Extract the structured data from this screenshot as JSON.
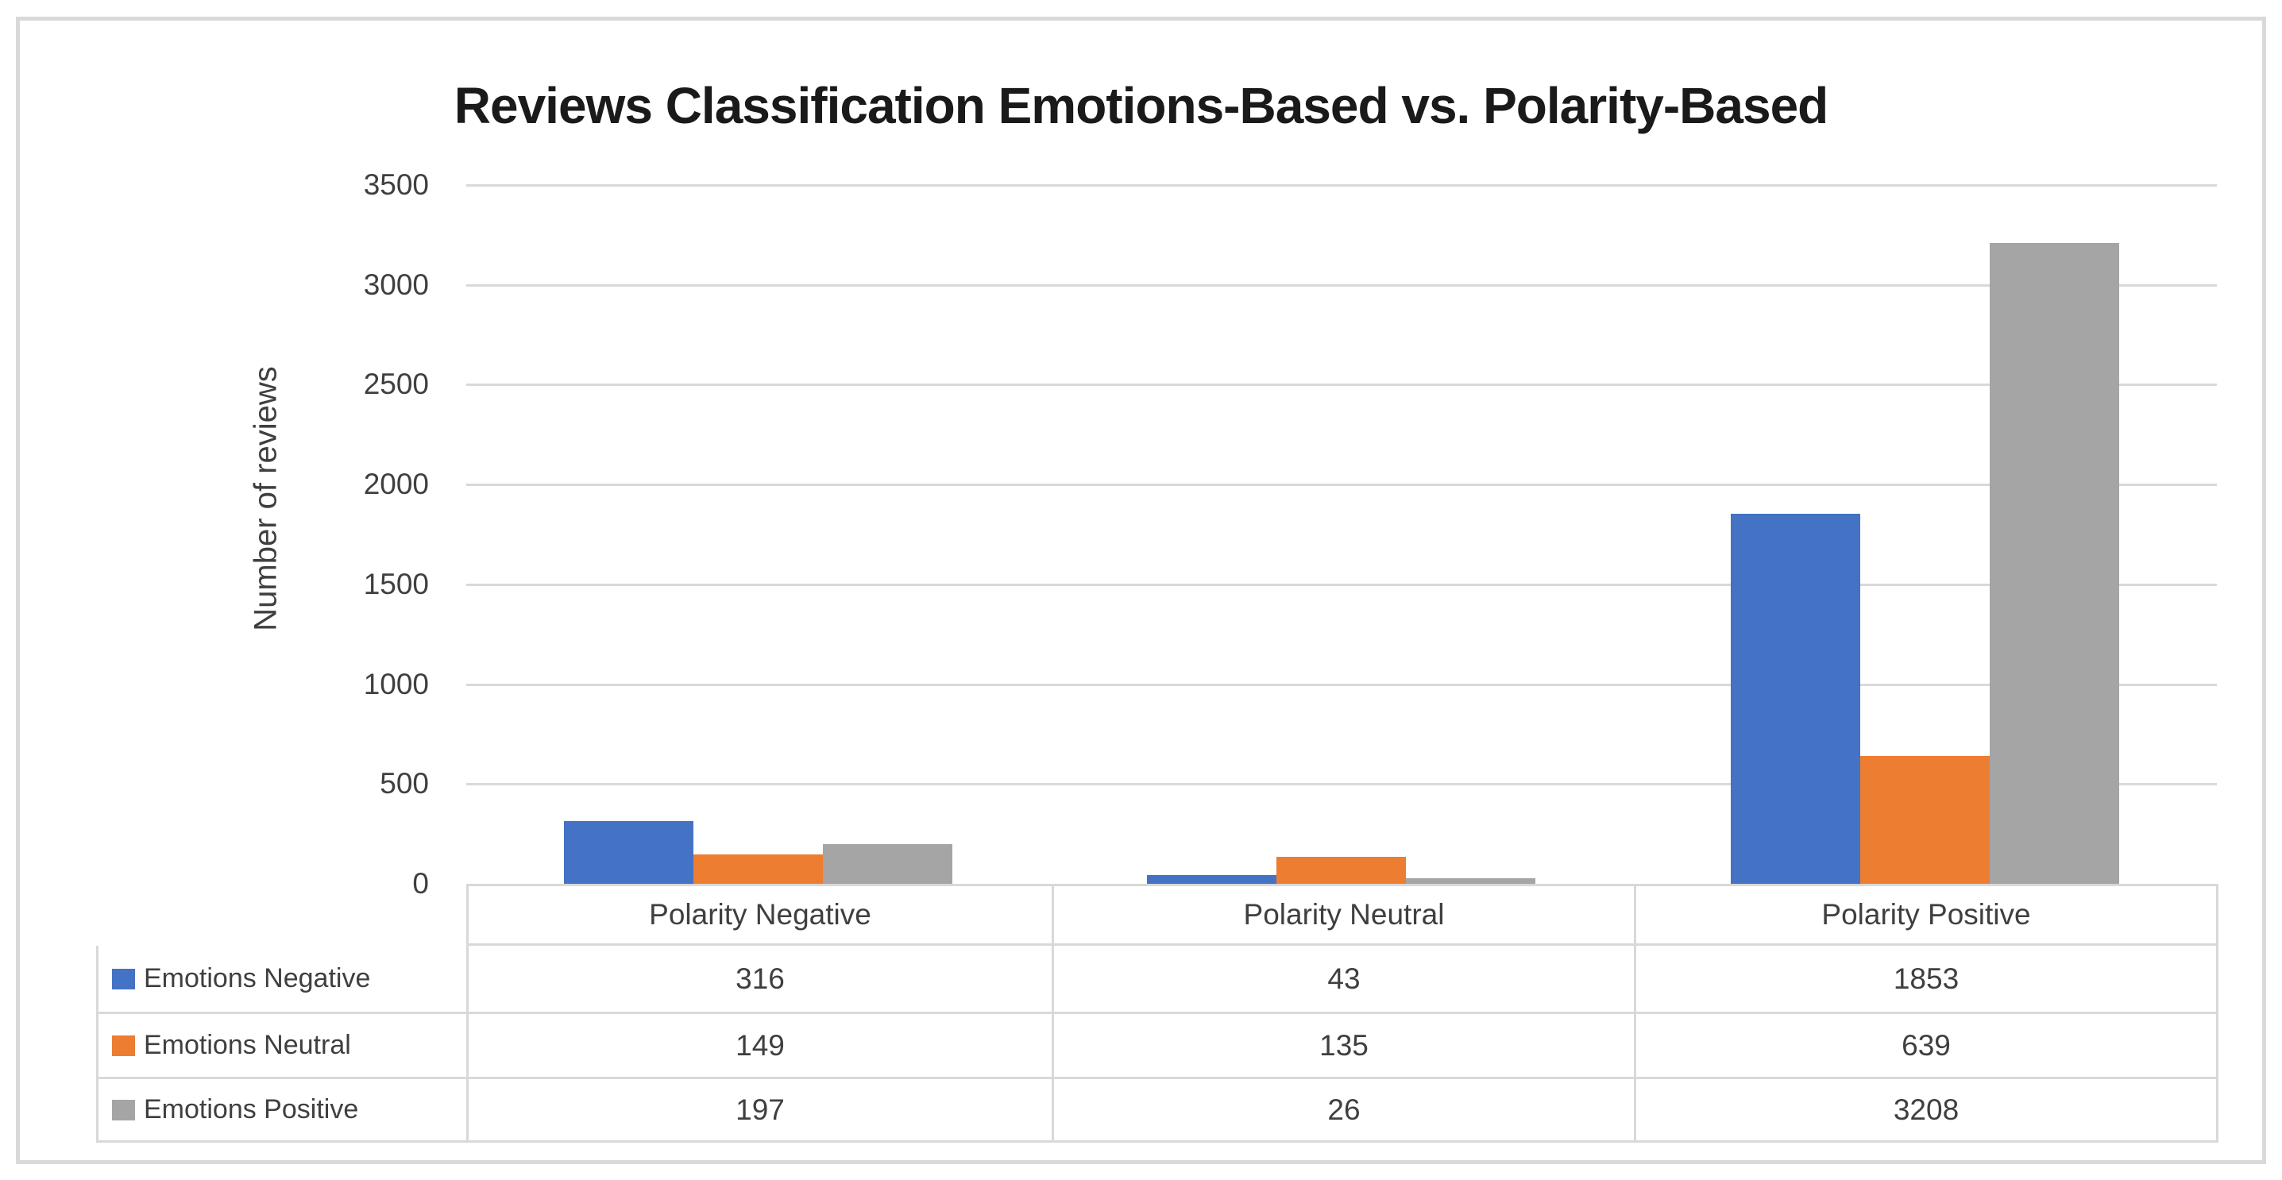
{
  "chart_data": {
    "type": "bar",
    "title": "Reviews Classification Emotions-Based vs. Polarity-Based",
    "categories": [
      "Polarity Negative",
      "Polarity Neutral",
      "Polarity Positive"
    ],
    "series": [
      {
        "name": "Emotions Negative",
        "color": "#4472C4",
        "values": [
          316,
          43,
          1853
        ]
      },
      {
        "name": "Emotions Neutral",
        "color": "#ED7D31",
        "values": [
          149,
          135,
          639
        ]
      },
      {
        "name": "Emotions Positive",
        "color": "#A5A5A5",
        "values": [
          197,
          26,
          3208
        ]
      }
    ],
    "xlabel": "",
    "ylabel": "Number of reviews",
    "ylim": [
      0,
      3500
    ],
    "ytick_step": 500,
    "y_ticks": [
      0,
      500,
      1000,
      1500,
      2000,
      2500,
      3000,
      3500
    ],
    "grid": true,
    "legend_position": "data-table-left",
    "data_table_shown": true
  },
  "colors": {
    "series_blue": "#4472C4",
    "series_orange": "#ED7D31",
    "series_gray": "#A5A5A5",
    "gridline": "#D9D9D9",
    "frame_border": "#D9D9D9",
    "text": "#3f3f3f",
    "title_text": "#1a1a1a",
    "background": "#FFFFFF"
  }
}
